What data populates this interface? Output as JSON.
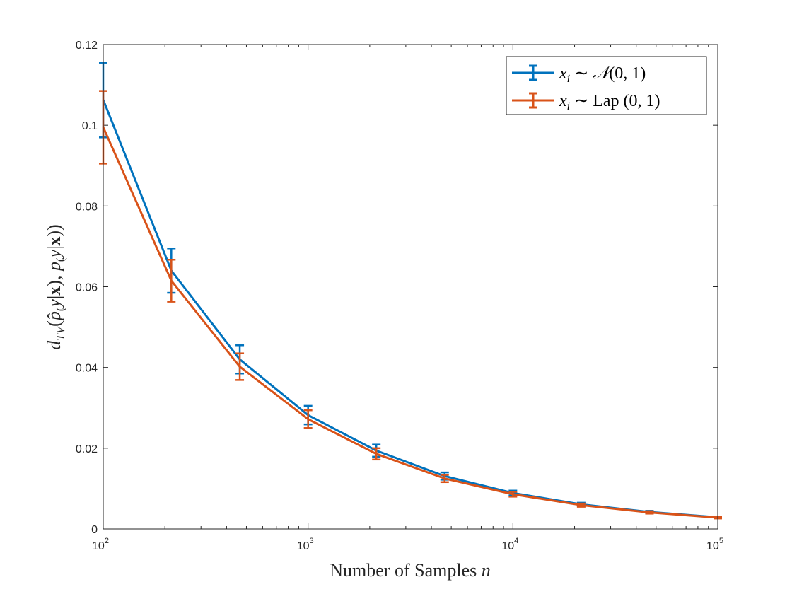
{
  "chart_data": {
    "type": "line",
    "x_scale": "log",
    "xlim": [
      100,
      100000
    ],
    "ylim": [
      0,
      0.12
    ],
    "x_ticks": [
      {
        "base": "10",
        "exp": "2"
      },
      {
        "base": "10",
        "exp": "3"
      },
      {
        "base": "10",
        "exp": "4"
      },
      {
        "base": "10",
        "exp": "5"
      }
    ],
    "x_tick_values": [
      100,
      1000,
      10000,
      100000
    ],
    "y_ticks": [
      "0",
      "0.02",
      "0.04",
      "0.06",
      "0.08",
      "0.1",
      "0.12"
    ],
    "y_tick_values": [
      0,
      0.02,
      0.04,
      0.06,
      0.08,
      0.1,
      0.12
    ],
    "xlabel": "Number of Samples n",
    "ylabel": "d_TV(p̂(y|x), p(y|x))",
    "grid": false,
    "box": true,
    "legend_position": "top-right",
    "x": [
      100,
      215,
      464,
      1000,
      2154,
      4642,
      10000,
      21544,
      46416,
      100000
    ],
    "series": [
      {
        "name": "x_i ~ N(0,1)",
        "color": "#0072BD",
        "values": [
          0.1063,
          0.064,
          0.042,
          0.0282,
          0.0194,
          0.0131,
          0.0089,
          0.0061,
          0.0042,
          0.0029
        ],
        "lower": [
          0.097,
          0.0585,
          0.0385,
          0.0259,
          0.0179,
          0.0122,
          0.0083,
          0.0057,
          0.0039,
          0.0027
        ],
        "upper": [
          0.1155,
          0.0695,
          0.0455,
          0.0305,
          0.0209,
          0.014,
          0.0095,
          0.0065,
          0.0045,
          0.0031
        ]
      },
      {
        "name": "x_i ~ Lap(0,1)",
        "color": "#D95319",
        "values": [
          0.0995,
          0.0615,
          0.0402,
          0.0272,
          0.0186,
          0.0125,
          0.0086,
          0.0059,
          0.0041,
          0.0028
        ],
        "lower": [
          0.0905,
          0.0563,
          0.0369,
          0.025,
          0.0172,
          0.0116,
          0.008,
          0.0055,
          0.0038,
          0.0026
        ],
        "upper": [
          0.1085,
          0.0667,
          0.0435,
          0.0294,
          0.02,
          0.0134,
          0.0092,
          0.0063,
          0.0044,
          0.003
        ]
      }
    ]
  }
}
